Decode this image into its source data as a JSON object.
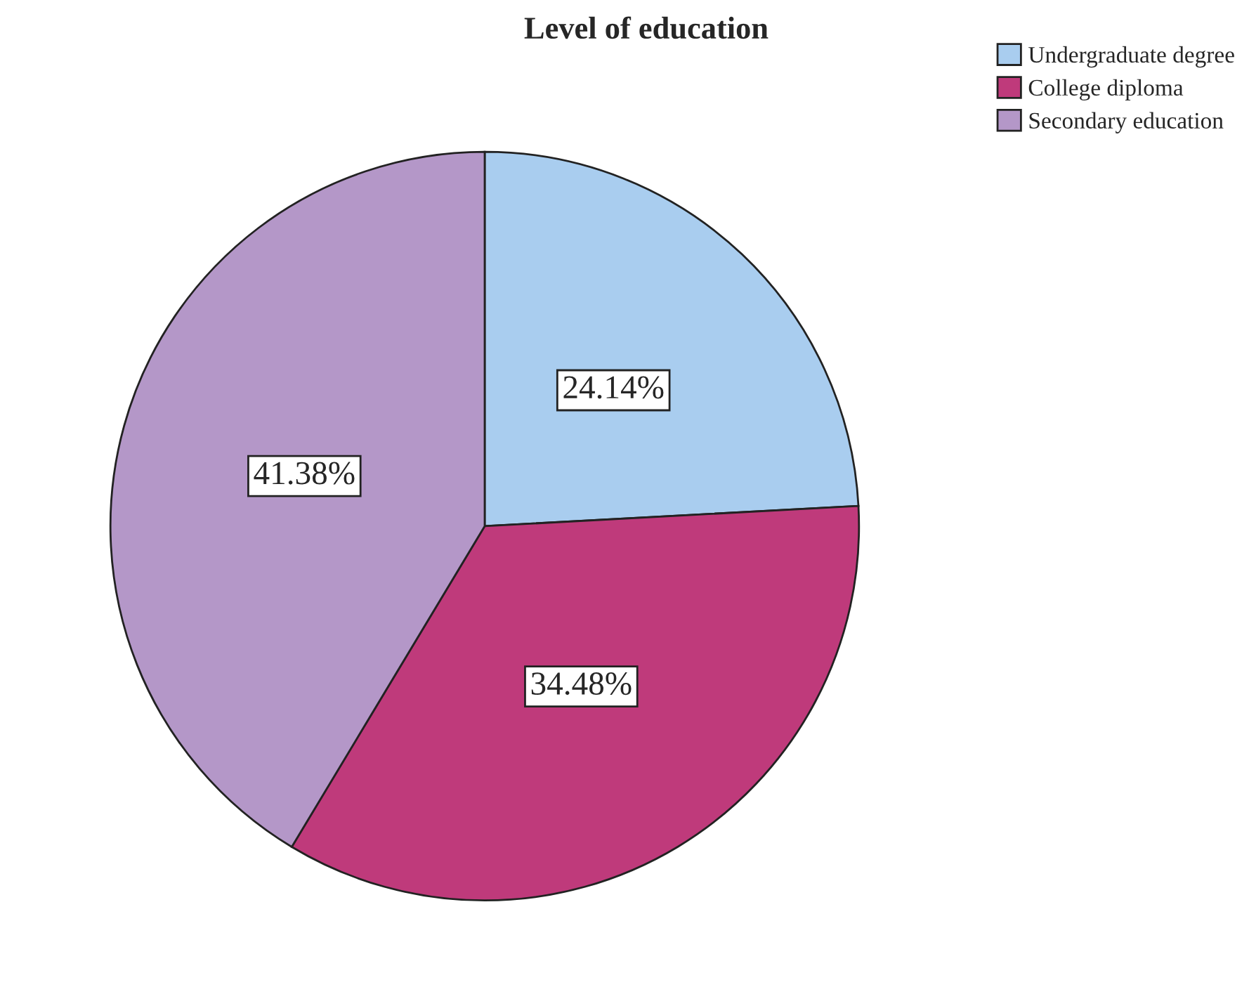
{
  "chart_data": {
    "type": "pie",
    "title": "Level of education",
    "categories": [
      "Undergraduate degree",
      "College diploma",
      "Secondary education"
    ],
    "values": [
      24.14,
      34.48,
      41.38
    ],
    "value_labels": [
      "24.14%",
      "34.48%",
      "41.38%"
    ],
    "colors": [
      "#a9cdef",
      "#bf3a7b",
      "#b497c8"
    ],
    "legend": "top right"
  }
}
